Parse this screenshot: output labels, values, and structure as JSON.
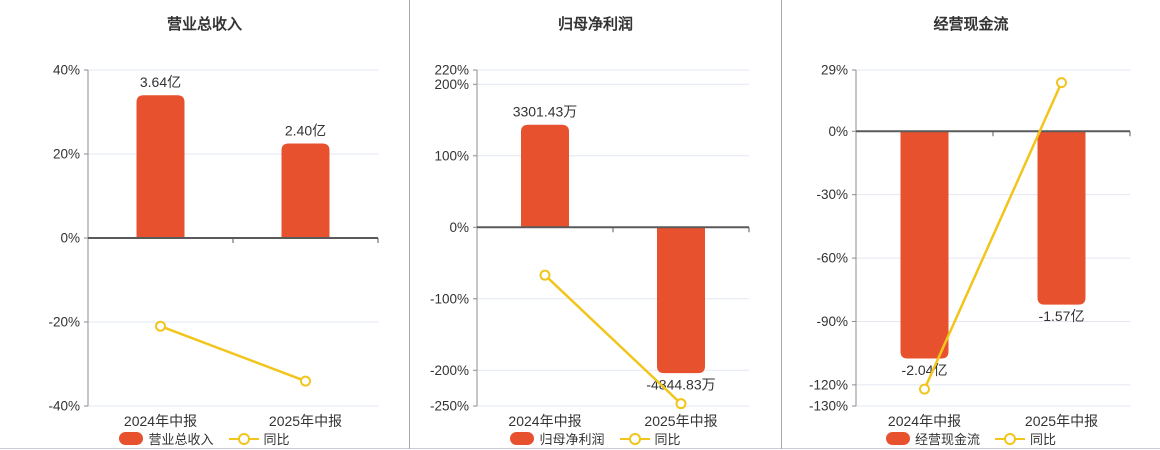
{
  "colors": {
    "bar": "#e8512d",
    "line": "#f2c51d",
    "grid": "#e2e7f3",
    "zero_axis": "#5a5a5a",
    "y_axis": "#8c8c8c",
    "text": "#333333",
    "divider": "#a8a8a8",
    "bottom_border": "#c8ccd4",
    "background": "#ffffff"
  },
  "chart_data": [
    {
      "type": "bar",
      "title": "营业总收入",
      "categories": [
        "2024年中报",
        "2025年中报"
      ],
      "series": [
        {
          "name": "营业总收入",
          "kind": "bar",
          "value_labels": [
            "3.64亿",
            "2.40亿"
          ],
          "plotted_pct": [
            34,
            22.5
          ]
        },
        {
          "name": "同比",
          "kind": "line",
          "values_pct": [
            -21,
            -34.07
          ]
        }
      ],
      "ylim": [
        -40,
        40
      ],
      "yticks": [
        40,
        20,
        0,
        -20,
        -40
      ],
      "ytick_suffix": "%",
      "grid": true,
      "legend_position": "bottom"
    },
    {
      "type": "bar",
      "title": "归母净利润",
      "categories": [
        "2024年中报",
        "2025年中报"
      ],
      "series": [
        {
          "name": "归母净利润",
          "kind": "bar",
          "value_labels": [
            "3301.43万",
            "-4844.83万"
          ],
          "plotted_pct": [
            143.5,
            -204
          ]
        },
        {
          "name": "同比",
          "kind": "line",
          "values_pct": [
            -67,
            -246.75
          ]
        }
      ],
      "ylim": [
        -250,
        220
      ],
      "yticks": [
        220,
        200,
        100,
        0,
        -100,
        -200,
        -250
      ],
      "ytick_suffix": "%",
      "grid": true,
      "legend_position": "bottom"
    },
    {
      "type": "bar",
      "title": "经营现金流",
      "categories": [
        "2024年中报",
        "2025年中报"
      ],
      "series": [
        {
          "name": "经营现金流",
          "kind": "bar",
          "value_labels": [
            "-2.04亿",
            "-1.57亿"
          ],
          "plotted_pct": [
            -107.5,
            -82
          ]
        },
        {
          "name": "同比",
          "kind": "line",
          "values_pct": [
            -122,
            23.04
          ]
        }
      ],
      "ylim": [
        -130,
        29
      ],
      "yticks": [
        29,
        0,
        -30,
        -60,
        -90,
        -120,
        -130
      ],
      "ytick_suffix": "%",
      "grid": true,
      "legend_position": "bottom"
    }
  ]
}
